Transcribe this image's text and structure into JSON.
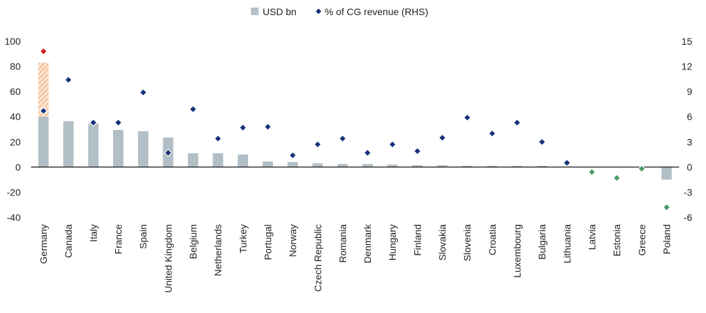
{
  "chart_data": {
    "type": "bar",
    "legend": {
      "position": "top-center",
      "items": [
        {
          "label": "USD bn",
          "marker": "square"
        },
        {
          "label": "% of CG revenue (RHS)",
          "marker": "diamond"
        }
      ]
    },
    "categories": [
      "Germany",
      "Canada",
      "Italy",
      "France",
      "Spain",
      "United Kingdom",
      "Belgium",
      "Netherlands",
      "Turkey",
      "Portugal",
      "Norway",
      "Czech Republic",
      "Romania",
      "Denmark",
      "Hungary",
      "Finland",
      "Slovakia",
      "Slovenia",
      "Croatia",
      "Luxembourg",
      "Bulgaria",
      "Lithuania",
      "Latvia",
      "Estonia",
      "Greece",
      "Poland"
    ],
    "series": [
      {
        "name": "USD bn",
        "axis": "left",
        "type": "bar",
        "color": "#b3bfc6",
        "values": [
          40,
          36.5,
          34.5,
          29.5,
          28.5,
          23.5,
          11,
          11,
          10,
          4.5,
          4,
          3,
          2.5,
          2.5,
          2,
          1.5,
          1.5,
          1,
          1,
          1,
          1,
          0,
          0,
          0,
          0,
          -10
        ]
      },
      {
        "name": "Germany (upper range)",
        "axis": "left",
        "type": "bar-hatched",
        "color": "#f0a56e",
        "category": "Germany",
        "range": [
          40,
          83
        ]
      },
      {
        "name": "% of CG revenue (RHS)",
        "axis": "right",
        "type": "scatter",
        "color": "#17327a",
        "values": [
          6.7,
          10.4,
          5.3,
          5.3,
          8.9,
          1.7,
          6.9,
          3.4,
          4.7,
          4.8,
          1.4,
          2.7,
          3.4,
          1.7,
          2.7,
          1.9,
          3.5,
          5.9,
          4.0,
          5.3,
          3.0,
          0.5,
          -0.6,
          -1.3,
          -0.2,
          -4.8
        ],
        "point_colors": [
          "#17327a",
          "#17327a",
          "#17327a",
          "#17327a",
          "#17327a",
          "#17327a",
          "#17327a",
          "#17327a",
          "#17327a",
          "#17327a",
          "#17327a",
          "#17327a",
          "#17327a",
          "#17327a",
          "#17327a",
          "#17327a",
          "#17327a",
          "#17327a",
          "#17327a",
          "#17327a",
          "#17327a",
          "#17327a",
          "#4a9a68",
          "#4a9a68",
          "#4a9a68",
          "#4a9a68"
        ]
      },
      {
        "name": "Germany (upper estimate)",
        "axis": "right",
        "type": "scatter",
        "color": "#cc2020",
        "category": "Germany",
        "value": 13.8
      }
    ],
    "y_left": {
      "min": -40,
      "max": 100,
      "ticks": [
        100,
        80,
        60,
        40,
        20,
        0,
        -20,
        -40
      ]
    },
    "y_right": {
      "min": -6,
      "max": 15,
      "ticks": [
        15,
        12,
        9,
        6,
        3,
        0,
        -3,
        -6
      ]
    },
    "xlabel": "",
    "ylabel": "",
    "grid": false
  }
}
